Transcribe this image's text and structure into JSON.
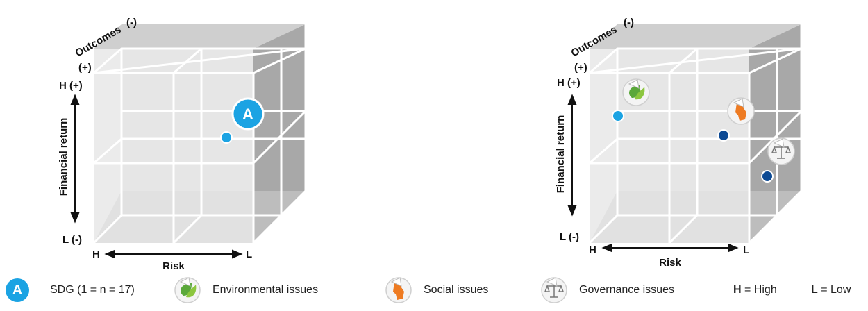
{
  "cube_left": {
    "outcomes_label": "Outcomes",
    "outcomes_neg": "(-)",
    "outcomes_pos": "(+)",
    "h_plus": "H (+)",
    "l_minus": "L (-)",
    "financial_return_label": "Financial return",
    "risk_label": "Risk",
    "risk_h": "H",
    "risk_l": "L",
    "badge_letter": "A"
  },
  "cube_right": {
    "outcomes_label": "Outcomes",
    "outcomes_neg": "(-)",
    "outcomes_pos": "(+)",
    "h_plus": "H (+)",
    "l_minus": "L (-)",
    "financial_return_label": "Financial return",
    "risk_label": "Risk",
    "risk_h": "H",
    "risk_l": "L"
  },
  "legend": {
    "sdg_letter": "A",
    "sdg_text": "SDG (1 = n = 17)",
    "environmental": "Environmental issues",
    "social": "Social issues",
    "governance": "Governance issues",
    "h_key": "H",
    "h_text": "= High",
    "l_key": "L",
    "l_text": "= Low"
  },
  "colors": {
    "sdg_blue": "#1ba3e3",
    "governance_dot": "#0d4a94",
    "environment_green": "#5aa83a",
    "social_orange": "#ee7b22"
  }
}
